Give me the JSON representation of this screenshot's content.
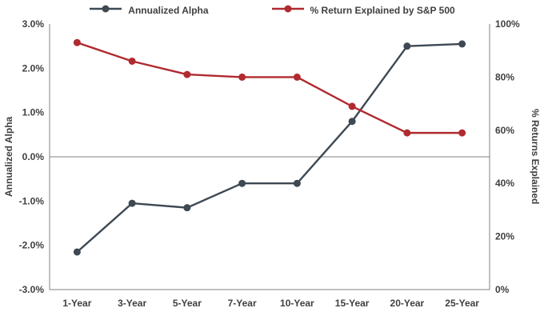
{
  "colors": {
    "alpha_series": "#3e4953",
    "sp500_series": "#b02a30",
    "axis_line": "#808080",
    "text": "#404040",
    "background": "#ffffff"
  },
  "chart_data": {
    "type": "line",
    "title": "",
    "legend_position": "top",
    "gridlines": "zero-line-only",
    "categories": [
      "1-Year",
      "3-Year",
      "5-Year",
      "7-Year",
      "10-Year",
      "15-Year",
      "20-Year",
      "25-Year"
    ],
    "series": [
      {
        "name": "Annualized Alpha",
        "axis": "left",
        "color": "#3e4953",
        "values": [
          -2.15,
          -1.05,
          -1.15,
          -0.6,
          -0.6,
          0.8,
          2.5,
          2.55
        ]
      },
      {
        "name": "% Return Explained by S&P 500",
        "axis": "right",
        "color": "#b02a30",
        "values": [
          93,
          86,
          81,
          80,
          80,
          69,
          59,
          59
        ]
      }
    ],
    "left_axis": {
      "title": "Annualized Alpha",
      "min": -3,
      "max": 3,
      "tick_values": [
        3,
        2,
        1,
        0,
        -1,
        -2,
        -3
      ],
      "ticks": [
        "3.0%",
        "2.0%",
        "1.0%",
        "0.0%",
        "-1.0%",
        "-2.0%",
        "-3.0%"
      ]
    },
    "right_axis": {
      "title": "% Returns Explained",
      "min": 0,
      "max": 100,
      "tick_values": [
        100,
        80,
        60,
        40,
        20,
        0
      ],
      "ticks": [
        "100%",
        "80%",
        "60%",
        "40%",
        "20%",
        "0%"
      ]
    }
  }
}
